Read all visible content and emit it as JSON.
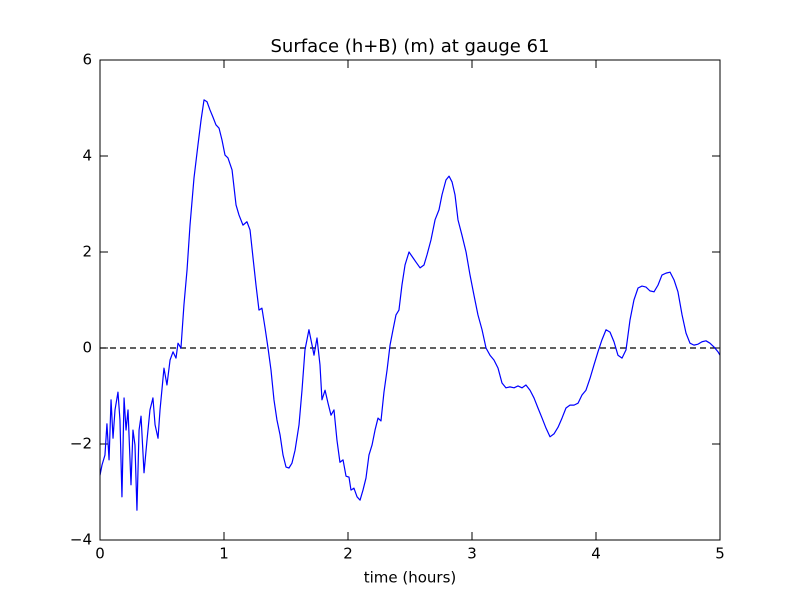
{
  "chart_data": {
    "type": "line",
    "title": "Surface (h+B) (m) at gauge 61",
    "x_label": "time (hours)",
    "x": [
      0,
      0.016,
      0.04,
      0.056,
      0.073,
      0.089,
      0.105,
      0.121,
      0.145,
      0.161,
      0.177,
      0.194,
      0.21,
      0.226,
      0.25,
      0.266,
      0.282,
      0.298,
      0.315,
      0.331,
      0.355,
      0.379,
      0.403,
      0.427,
      0.444,
      0.468,
      0.484,
      0.516,
      0.54,
      0.565,
      0.589,
      0.613,
      0.629,
      0.653,
      0.677,
      0.702,
      0.726,
      0.758,
      0.79,
      0.815,
      0.839,
      0.863,
      0.887,
      0.911,
      0.935,
      0.96,
      0.984,
      1.008,
      1.032,
      1.065,
      1.097,
      1.121,
      1.153,
      1.185,
      1.21,
      1.234,
      1.258,
      1.282,
      1.306,
      1.331,
      1.355,
      1.379,
      1.403,
      1.427,
      1.452,
      1.476,
      1.5,
      1.524,
      1.548,
      1.573,
      1.605,
      1.629,
      1.653,
      1.685,
      1.71,
      1.726,
      1.75,
      1.774,
      1.79,
      1.815,
      1.839,
      1.863,
      1.887,
      1.911,
      1.935,
      1.96,
      1.984,
      2.008,
      2.024,
      2.048,
      2.073,
      2.097,
      2.121,
      2.145,
      2.169,
      2.194,
      2.218,
      2.242,
      2.266,
      2.29,
      2.315,
      2.339,
      2.363,
      2.387,
      2.411,
      2.435,
      2.46,
      2.492,
      2.524,
      2.548,
      2.581,
      2.613,
      2.637,
      2.669,
      2.702,
      2.734,
      2.758,
      2.79,
      2.815,
      2.839,
      2.863,
      2.887,
      2.919,
      2.952,
      2.984,
      3.016,
      3.048,
      3.081,
      3.113,
      3.145,
      3.177,
      3.21,
      3.242,
      3.274,
      3.306,
      3.339,
      3.371,
      3.403,
      3.435,
      3.468,
      3.5,
      3.532,
      3.565,
      3.597,
      3.629,
      3.661,
      3.694,
      3.726,
      3.758,
      3.79,
      3.823,
      3.855,
      3.887,
      3.919,
      3.952,
      3.984,
      4.016,
      4.048,
      4.081,
      4.113,
      4.145,
      4.177,
      4.21,
      4.242,
      4.274,
      4.306,
      4.339,
      4.371,
      4.403,
      4.435,
      4.468,
      4.5,
      4.532,
      4.565,
      4.597,
      4.629,
      4.661,
      4.694,
      4.726,
      4.758,
      4.79,
      4.823,
      4.855,
      4.887,
      4.919,
      4.952,
      4.984,
      5.0
    ],
    "series": [
      {
        "color": "#0000ff",
        "values": [
          -2.65,
          -2.44,
          -2.23,
          -1.58,
          -2.33,
          -1.08,
          -1.88,
          -1.29,
          -0.92,
          -1.5,
          -3.1,
          -1.04,
          -1.71,
          -1.29,
          -2.85,
          -1.71,
          -2.02,
          -3.38,
          -1.71,
          -1.42,
          -2.6,
          -1.92,
          -1.29,
          -1.04,
          -1.6,
          -1.88,
          -1.29,
          -0.42,
          -0.77,
          -0.25,
          -0.08,
          -0.21,
          0.1,
          0,
          0.9,
          1.63,
          2.56,
          3.54,
          4.23,
          4.75,
          5.17,
          5.13,
          4.96,
          4.81,
          4.65,
          4.58,
          4.33,
          4.02,
          3.96,
          3.71,
          2.98,
          2.77,
          2.56,
          2.63,
          2.46,
          1.88,
          1.31,
          0.79,
          0.83,
          0.42,
          0,
          -0.46,
          -1.08,
          -1.5,
          -1.81,
          -2.23,
          -2.48,
          -2.5,
          -2.4,
          -2.13,
          -1.6,
          -0.88,
          -0.04,
          0.38,
          0.06,
          -0.15,
          0.21,
          -0.35,
          -1.08,
          -0.88,
          -1.15,
          -1.4,
          -1.29,
          -1.92,
          -2.38,
          -2.33,
          -2.67,
          -2.69,
          -2.96,
          -2.92,
          -3.1,
          -3.17,
          -2.96,
          -2.71,
          -2.23,
          -2.02,
          -1.71,
          -1.46,
          -1.52,
          -0.92,
          -0.46,
          0.06,
          0.38,
          0.69,
          0.79,
          1.31,
          1.73,
          2.0,
          1.88,
          1.79,
          1.67,
          1.73,
          1.94,
          2.25,
          2.67,
          2.88,
          3.19,
          3.5,
          3.58,
          3.46,
          3.19,
          2.67,
          2.35,
          2.0,
          1.52,
          1.1,
          0.69,
          0.38,
          0,
          -0.15,
          -0.25,
          -0.42,
          -0.73,
          -0.83,
          -0.81,
          -0.83,
          -0.79,
          -0.83,
          -0.77,
          -0.88,
          -1.04,
          -1.25,
          -1.46,
          -1.67,
          -1.85,
          -1.79,
          -1.65,
          -1.46,
          -1.25,
          -1.19,
          -1.19,
          -1.15,
          -0.98,
          -0.88,
          -0.63,
          -0.35,
          -0.08,
          0.17,
          0.38,
          0.33,
          0.13,
          -0.15,
          -0.21,
          -0.04,
          0.58,
          1.0,
          1.25,
          1.29,
          1.27,
          1.19,
          1.17,
          1.31,
          1.52,
          1.56,
          1.58,
          1.42,
          1.17,
          0.69,
          0.31,
          0.1,
          0.06,
          0.08,
          0.13,
          0.15,
          0.1,
          0.02,
          -0.08,
          -0.15
        ]
      }
    ],
    "reference_line": {
      "value": 0,
      "color": "#000000",
      "style": "dashed"
    },
    "xlim": [
      0,
      5
    ],
    "xticks": [
      0,
      1,
      2,
      3,
      4,
      5
    ],
    "ylim": [
      -4,
      6
    ],
    "yticks": [
      {
        "value": -4,
        "label": "−4"
      },
      {
        "value": -2,
        "label": "−2"
      },
      0,
      2,
      4,
      6
    ],
    "grid": false
  }
}
